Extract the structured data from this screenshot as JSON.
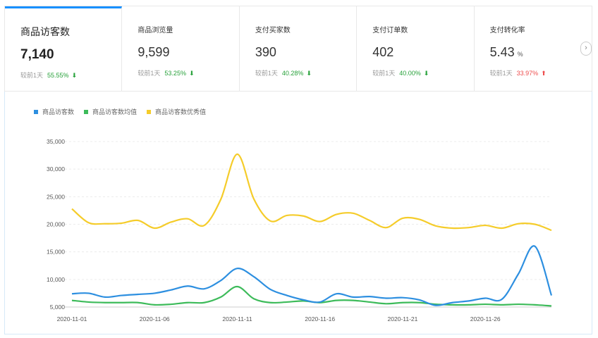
{
  "metrics": [
    {
      "title": "商品访客数",
      "value": "7,140",
      "unit": "",
      "compare_label": "较前1天",
      "pct": "55.55%",
      "direction": "down"
    },
    {
      "title": "商品浏览量",
      "value": "9,599",
      "unit": "",
      "compare_label": "较前1天",
      "pct": "53.25%",
      "direction": "down"
    },
    {
      "title": "支付买家数",
      "value": "390",
      "unit": "",
      "compare_label": "较前1天",
      "pct": "40.28%",
      "direction": "down"
    },
    {
      "title": "支付订单数",
      "value": "402",
      "unit": "",
      "compare_label": "较前1天",
      "pct": "40.00%",
      "direction": "down"
    },
    {
      "title": "支付转化率",
      "value": "5.43",
      "unit": "%",
      "compare_label": "较前1天",
      "pct": "33.97%",
      "direction": "up"
    }
  ],
  "nav_next_glyph": "›",
  "arrow_down_glyph": "⬇",
  "arrow_up_glyph": "⬆",
  "colors": {
    "accent": "#1890ff",
    "blue": "#2d8fe0",
    "green": "#3dbb5a",
    "yellow": "#f5cc2a",
    "down": "#27a13a",
    "up": "#ee4d4d"
  },
  "chart_data": {
    "type": "line",
    "title": "",
    "xlabel": "",
    "ylabel": "",
    "ylim": [
      5000,
      35000
    ],
    "yticks": [
      "5,000",
      "10,000",
      "15,000",
      "20,000",
      "25,000",
      "30,000",
      "35,000"
    ],
    "ytick_values": [
      5000,
      10000,
      15000,
      20000,
      25000,
      30000,
      35000
    ],
    "x": [
      "2020-11-01",
      "2020-11-02",
      "2020-11-03",
      "2020-11-04",
      "2020-11-05",
      "2020-11-06",
      "2020-11-07",
      "2020-11-08",
      "2020-11-09",
      "2020-11-10",
      "2020-11-11",
      "2020-11-12",
      "2020-11-13",
      "2020-11-14",
      "2020-11-15",
      "2020-11-16",
      "2020-11-17",
      "2020-11-18",
      "2020-11-19",
      "2020-11-20",
      "2020-11-21",
      "2020-11-22",
      "2020-11-23",
      "2020-11-24",
      "2020-11-25",
      "2020-11-26",
      "2020-11-27",
      "2020-11-28",
      "2020-11-29",
      "2020-11-30"
    ],
    "xticks": [
      "2020-11-01",
      "2020-11-06",
      "2020-11-11",
      "2020-11-16",
      "2020-11-21",
      "2020-11-26"
    ],
    "legend_position": "top-left",
    "grid": true,
    "series": [
      {
        "name": "商品访客数",
        "color": "#2d8fe0",
        "values": [
          7400,
          7500,
          6800,
          7100,
          7300,
          7500,
          8100,
          8800,
          8300,
          9800,
          12000,
          10500,
          8200,
          7100,
          6300,
          5900,
          7400,
          6800,
          6900,
          6600,
          6700,
          6300,
          5300,
          5800,
          6100,
          6600,
          6400,
          11000,
          16000,
          7100
        ]
      },
      {
        "name": "商品访客数均值",
        "color": "#3dbb5a",
        "values": [
          6200,
          5900,
          5800,
          5800,
          5800,
          5400,
          5500,
          5800,
          5800,
          6800,
          8700,
          6500,
          5800,
          5900,
          6100,
          5800,
          6200,
          6200,
          5900,
          5600,
          5800,
          5800,
          5500,
          5400,
          5400,
          5500,
          5400,
          5500,
          5400,
          5200
        ]
      },
      {
        "name": "商品访客数优秀值",
        "color": "#f5cc2a",
        "values": [
          22800,
          20300,
          20100,
          20200,
          20700,
          19300,
          20400,
          21000,
          19800,
          24500,
          32700,
          24600,
          20600,
          21600,
          21500,
          20500,
          21800,
          22000,
          20700,
          19400,
          21100,
          20900,
          19700,
          19300,
          19400,
          19800,
          19300,
          20100,
          20000,
          18900
        ]
      }
    ]
  }
}
